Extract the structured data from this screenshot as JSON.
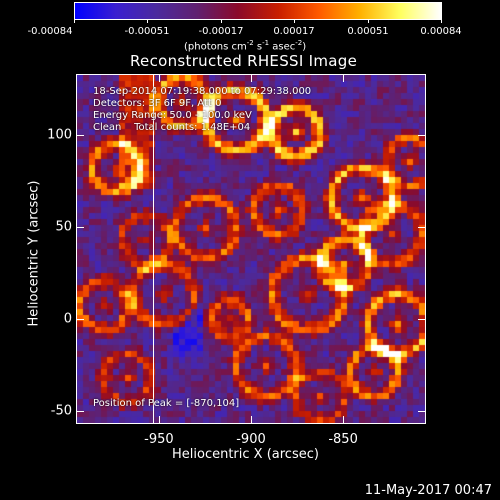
{
  "colorbar": {
    "tick_labels": [
      "-0.00084",
      "-0.00051",
      "-0.00017",
      "0.00017",
      "0.00051",
      "0.00084"
    ],
    "units_prefix": "(photons cm",
    "units_e1": "-2",
    "units_s": " s",
    "units_e2": "-1",
    "units_asec": " asec",
    "units_e3": "-2",
    "units_suffix": ")"
  },
  "title": "Reconstructed RHESSI Image",
  "overlay": {
    "line1": "18-Sep-2014 07:19:38.000 to 07:29:38.000",
    "line2": "Detectors: 3F 6F 9F, Att 0",
    "line3": "Energy Range: 50.0 - 100.0 keV",
    "line4": "Clean    Total counts: 1.48E+04",
    "peak": "Position of Peak = [-870,104]"
  },
  "axes": {
    "xlabel": "Heliocentric X (arcsec)",
    "ylabel": "Heliocentric Y (arcsec)",
    "x_ticks": [
      "-950",
      "-900",
      "-850"
    ],
    "y_ticks": [
      "100",
      "50",
      "0",
      "-50"
    ],
    "x_tick_values": [
      -950,
      -900,
      -850
    ],
    "y_tick_values": [
      100,
      50,
      0,
      -50
    ],
    "xlim": [
      -995,
      -805
    ],
    "ylim": [
      -57,
      133
    ]
  },
  "timestamp": "11-May-2017 00:47",
  "colors": {
    "colormap": [
      "#0000ff",
      "#3a1fd0",
      "#4b2a9e",
      "#602070",
      "#8b0a2a",
      "#c81e00",
      "#ff5a00",
      "#ffb000",
      "#ffff60",
      "#ffffff"
    ]
  }
}
